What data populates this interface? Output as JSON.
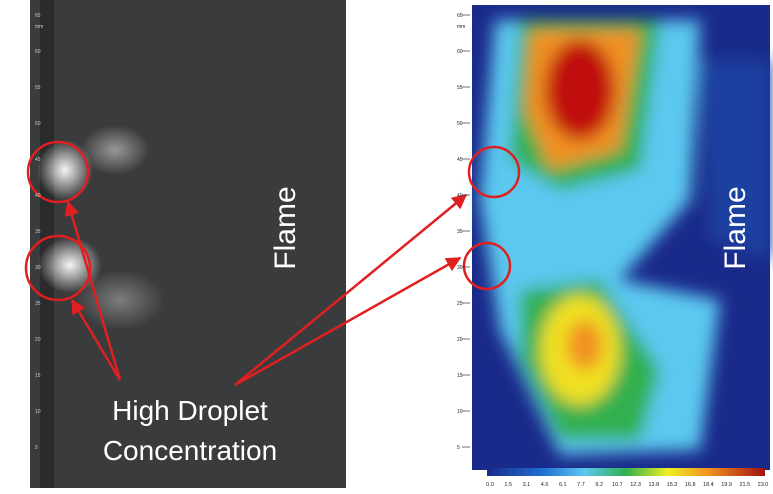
{
  "figure": {
    "left_panel": {
      "label": "Flame"
    },
    "right_panel": {
      "label": "Flame"
    },
    "ruler": {
      "unit": "mm",
      "labels": [
        "65",
        "60",
        "55",
        "50",
        "45",
        "40",
        "35",
        "30",
        "25",
        "20",
        "15",
        "10",
        "5"
      ]
    },
    "annotation": {
      "lines": [
        "High Droplet",
        "Concentration"
      ]
    },
    "colorbar": {
      "labels": [
        "0.0",
        "1.5",
        "3.1",
        "4.6",
        "6.1",
        "7.7",
        "9.2",
        "10.7",
        "12.3",
        "13.8",
        "15.3",
        "16.8",
        "18.4",
        "19.9",
        "21.5",
        "23.0"
      ]
    }
  }
}
